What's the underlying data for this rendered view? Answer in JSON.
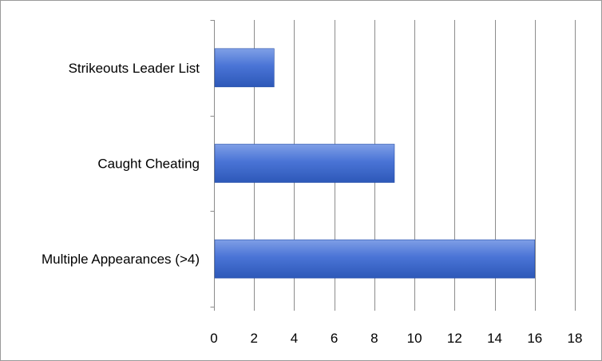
{
  "chart_data": {
    "type": "bar",
    "orientation": "horizontal",
    "categories": [
      "Strikeouts Leader List",
      "Caught Cheating",
      "Multiple Appearances (>4)"
    ],
    "values": [
      3,
      9,
      16
    ],
    "xlim": [
      0,
      18
    ],
    "xticks": [
      "0",
      "2",
      "4",
      "6",
      "8",
      "10",
      "12",
      "14",
      "16",
      "18"
    ],
    "grid": "vertical",
    "legend": "none",
    "colors": {
      "bar_light": "#7f9fe6",
      "bar_mid": "#4a74d6",
      "bar_dark": "#2d58b8",
      "bar_stroke": "#264fa8",
      "grid": "#8c8c8c",
      "axis": "#8c8c8c"
    }
  }
}
